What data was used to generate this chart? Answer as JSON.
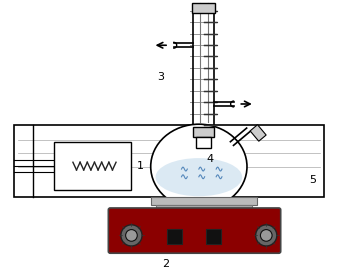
{
  "background_color": "#ffffff",
  "label_1": "1",
  "label_2": "2",
  "label_3": "3",
  "label_4": "4",
  "label_5": "5",
  "label_fontsize": 8,
  "line_color": "#000000",
  "dark_red": "#8b0000",
  "light_gray": "#cccccc",
  "mid_gray": "#999999",
  "water_color": "#b8d4e8",
  "coil_color": "#444444",
  "coil_bg": "#aaaaaa"
}
